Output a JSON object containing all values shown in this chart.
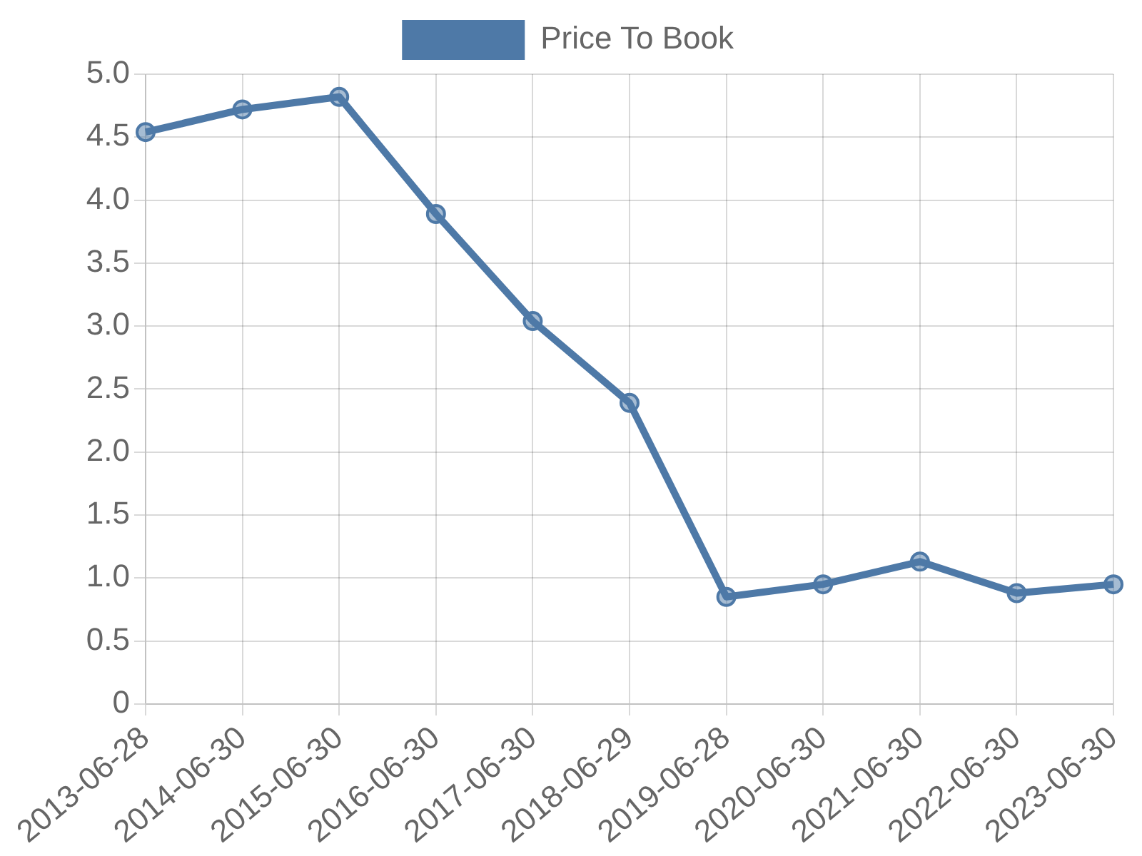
{
  "chart_data": {
    "type": "line",
    "categories": [
      "2013-06-28",
      "2014-06-30",
      "2015-06-30",
      "2016-06-30",
      "2017-06-30",
      "2018-06-29",
      "2019-06-28",
      "2020-06-30",
      "2021-06-30",
      "2022-06-30",
      "2023-06-30"
    ],
    "series": [
      {
        "name": "Price To Book",
        "color": "#4e79a7",
        "values": [
          4.54,
          4.72,
          4.82,
          3.89,
          3.04,
          2.39,
          0.85,
          0.95,
          1.13,
          0.88,
          0.95
        ]
      }
    ],
    "ylim": [
      0,
      5
    ],
    "yticks": [
      {
        "value": 0,
        "label": "0"
      },
      {
        "value": 0.5,
        "label": "0.5"
      },
      {
        "value": 1,
        "label": "1.0"
      },
      {
        "value": 1.5,
        "label": "1.5"
      },
      {
        "value": 2,
        "label": "2.0"
      },
      {
        "value": 2.5,
        "label": "2.5"
      },
      {
        "value": 3,
        "label": "3.0"
      },
      {
        "value": 3.5,
        "label": "3.5"
      },
      {
        "value": 4,
        "label": "4.0"
      },
      {
        "value": 4.5,
        "label": "4.5"
      },
      {
        "value": 5,
        "label": "5.0"
      }
    ],
    "grid": true,
    "legend": "top",
    "marker": "circle",
    "line_style": "solid"
  }
}
